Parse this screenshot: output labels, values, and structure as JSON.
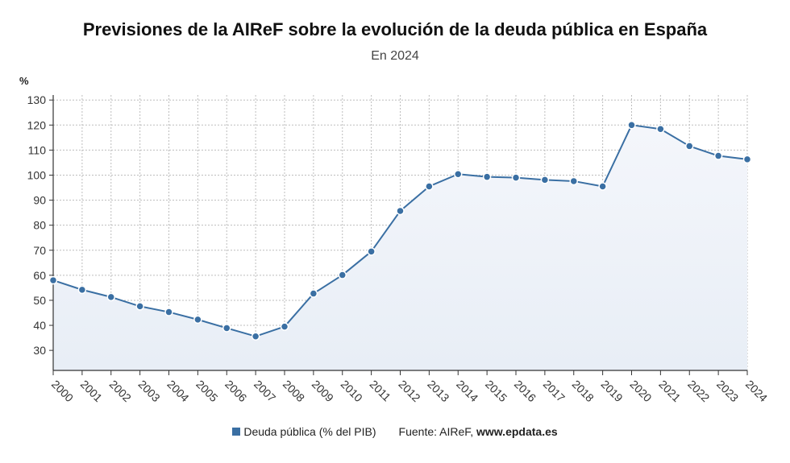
{
  "header": {
    "title": "Previsiones de la AIReF sobre la evolución de la deuda pública en España",
    "subtitle": "En 2024"
  },
  "legend": {
    "series_label": "Deuda pública (% del PIB)",
    "source_prefix": "Fuente: AIReF, ",
    "source_site": "www.epdata.es"
  },
  "colors": {
    "line": "#3a6fa3",
    "fill_top": "#f4f6fb",
    "fill_bottom": "#e8eef6",
    "grid": "#bdbdbd"
  },
  "chart_data": {
    "type": "line",
    "title": "Previsiones de la AIReF sobre la evolución de la deuda pública en España",
    "subtitle": "En 2024",
    "ylabel": "%",
    "xlabel": "",
    "ylim": [
      22,
      132
    ],
    "yticks": [
      30,
      40,
      50,
      60,
      70,
      80,
      90,
      100,
      110,
      120,
      130
    ],
    "grid": true,
    "legend_position": "bottom",
    "categories": [
      "2000",
      "2001",
      "2002",
      "2003",
      "2004",
      "2005",
      "2006",
      "2007",
      "2008",
      "2009",
      "2010",
      "2011",
      "2012",
      "2013",
      "2014",
      "2015",
      "2016",
      "2017",
      "2018",
      "2019",
      "2020",
      "2021",
      "2022",
      "2023",
      "2024"
    ],
    "series": [
      {
        "name": "Deuda pública (% del PIB)",
        "values": [
          58,
          54.2,
          51.3,
          47.6,
          45.3,
          42.3,
          38.9,
          35.6,
          39.5,
          52.7,
          60.1,
          69.5,
          85.7,
          95.5,
          100.4,
          99.3,
          99,
          98.1,
          97.6,
          95.5,
          120,
          118.4,
          111.6,
          107.7,
          106.3
        ]
      }
    ]
  }
}
